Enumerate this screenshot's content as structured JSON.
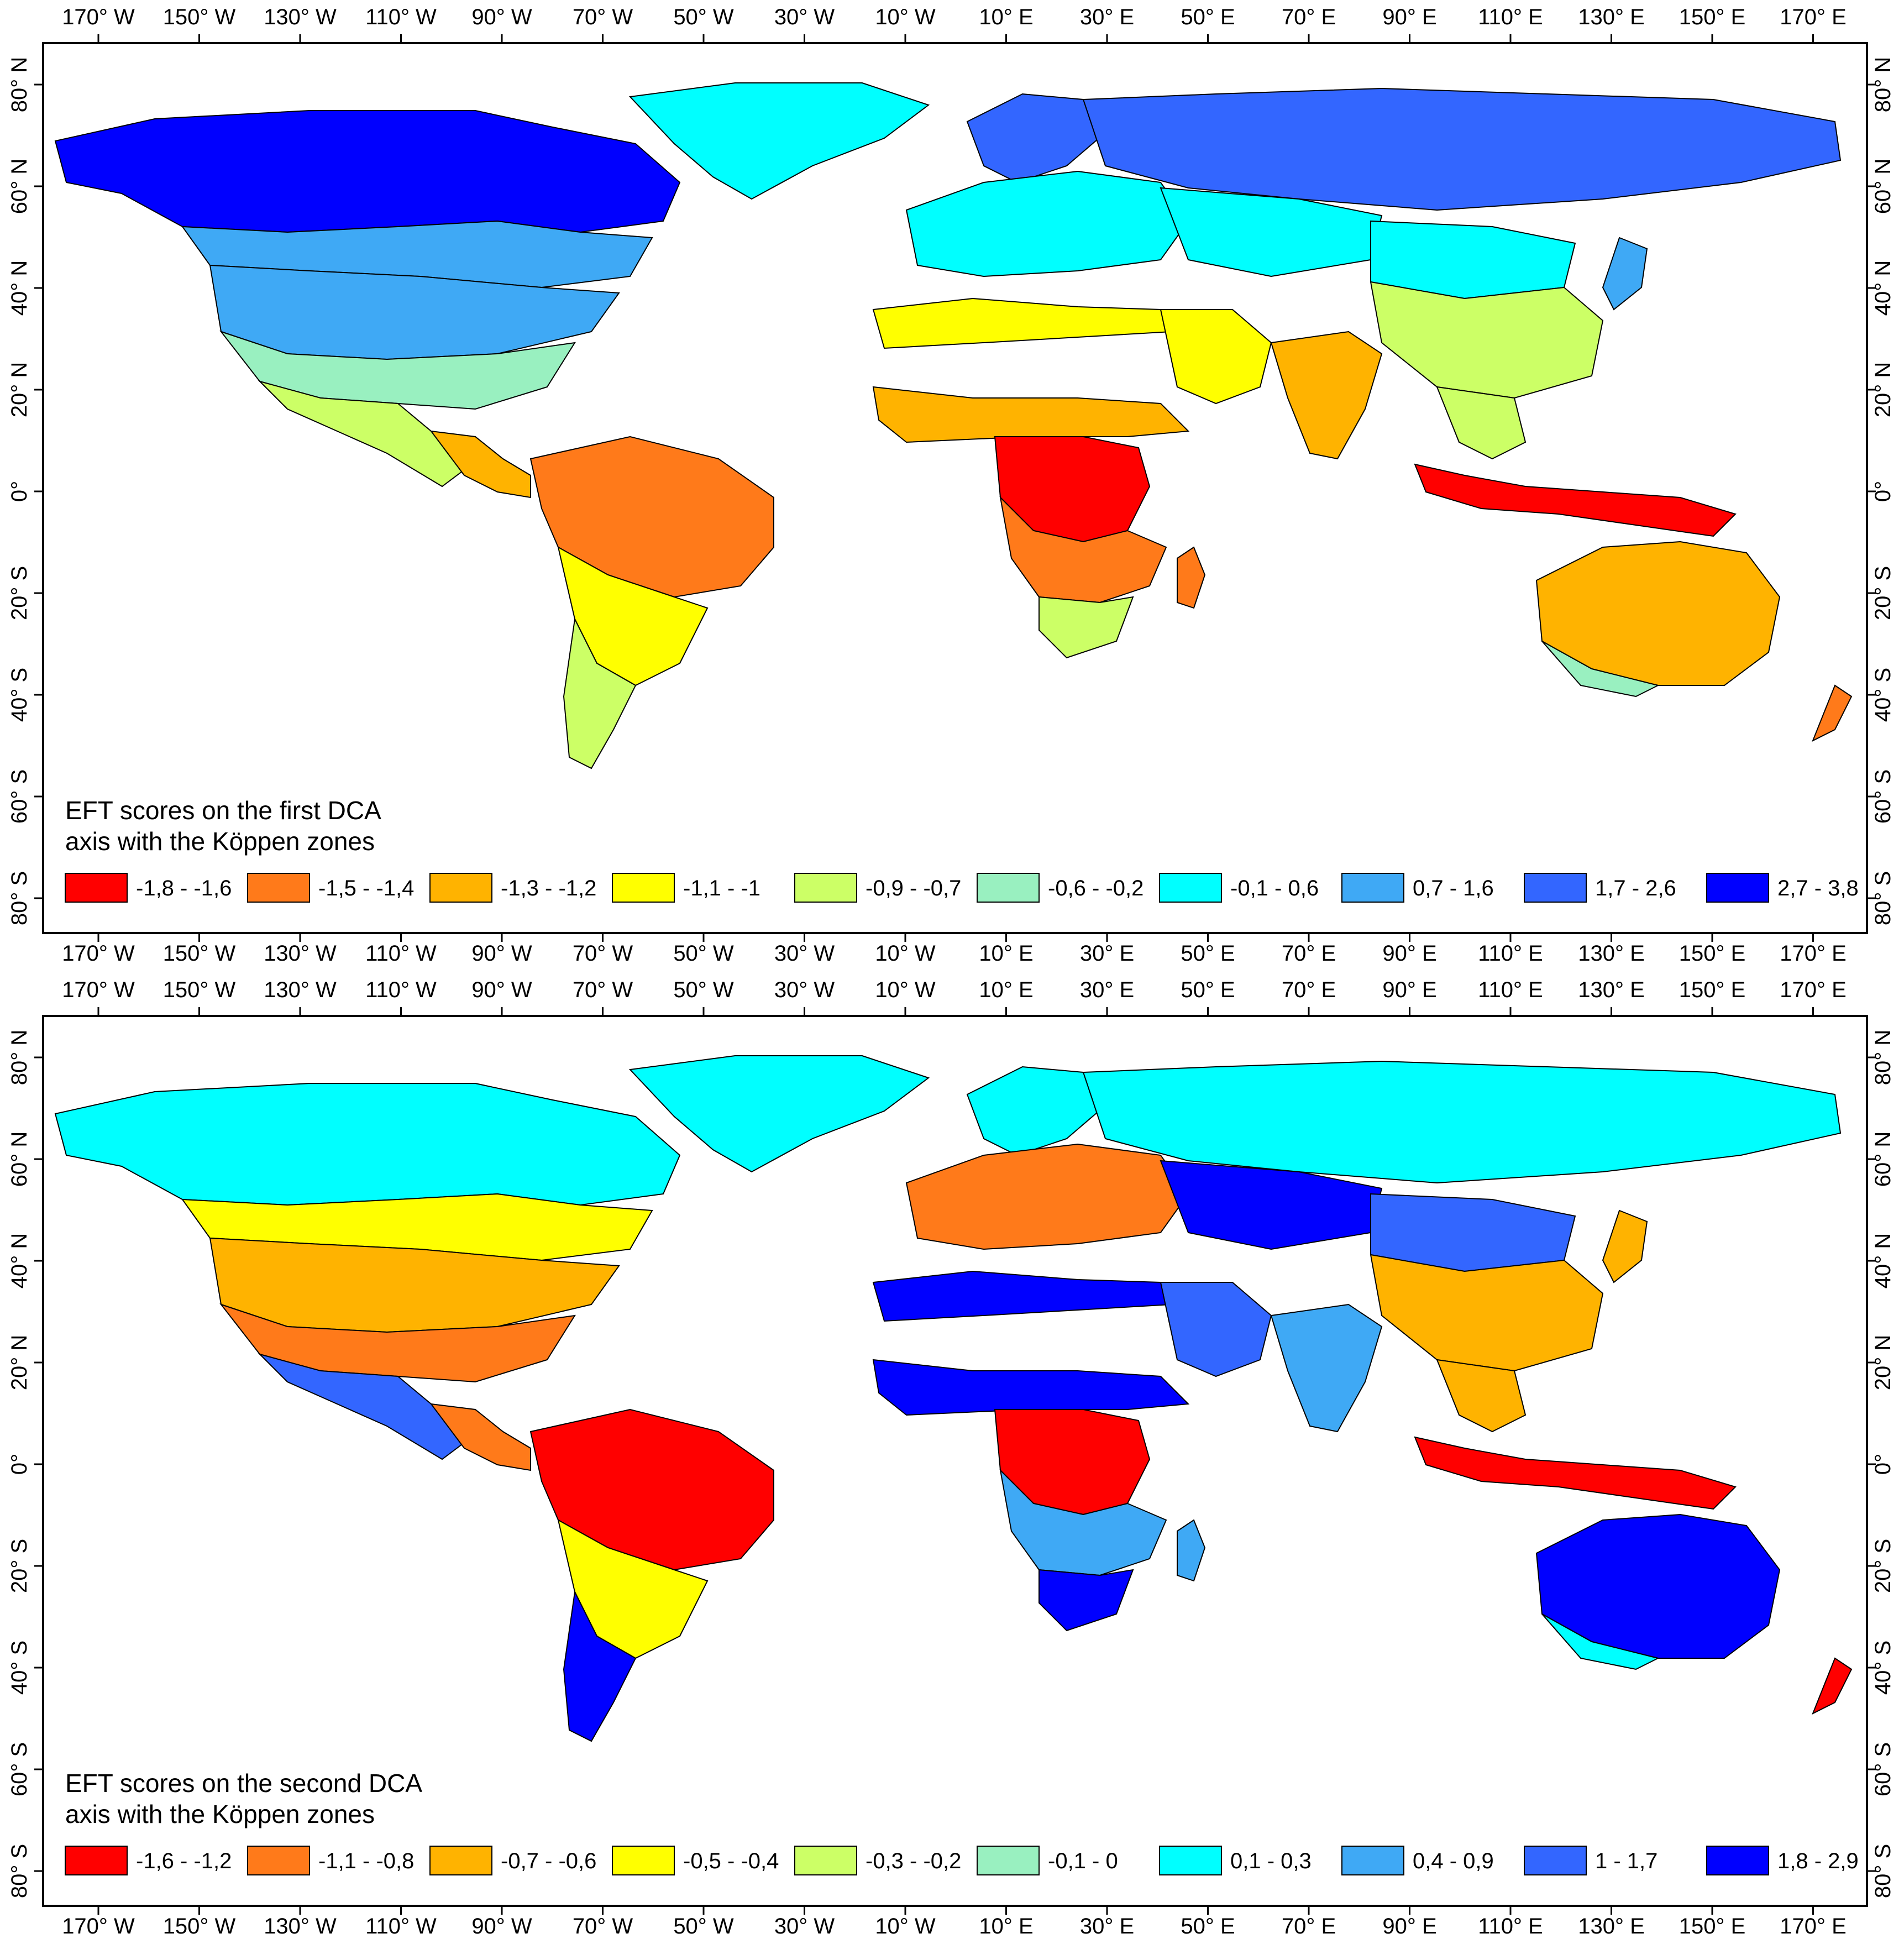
{
  "maps": [
    {
      "id": "dca-axis-1",
      "title_lines": [
        "EFT scores on the first DCA",
        "axis with the Köppen zones"
      ],
      "legend": [
        {
          "label": "-1,8 - -1,6",
          "color": "#ff0000"
        },
        {
          "label": "-1,5 - -1,4",
          "color": "#ff7a1a"
        },
        {
          "label": "-1,3 - -1,2",
          "color": "#ffb300"
        },
        {
          "label": "-1,1 - -1",
          "color": "#ffff00"
        },
        {
          "label": "-0,9 - -0,7",
          "color": "#ccff66"
        },
        {
          "label": "-0,6 - -0,2",
          "color": "#99f0c0"
        },
        {
          "label": "-0,1 - 0,6",
          "color": "#00ffff"
        },
        {
          "label": "0,7 - 1,6",
          "color": "#3fa9f5"
        },
        {
          "label": "1,7 - 2,6",
          "color": "#3366ff"
        },
        {
          "label": "2,7 - 3,8",
          "color": "#0000ff"
        }
      ]
    },
    {
      "id": "dca-axis-2",
      "title_lines": [
        "EFT scores on the second DCA",
        "axis with the Köppen zones"
      ],
      "legend": [
        {
          "label": "-1,6 - -1,2",
          "color": "#ff0000"
        },
        {
          "label": "-1,1 - -0,8",
          "color": "#ff7a1a"
        },
        {
          "label": "-0,7 - -0,6",
          "color": "#ffb300"
        },
        {
          "label": "-0,5 - -0,4",
          "color": "#ffff00"
        },
        {
          "label": "-0,3 - -0,2",
          "color": "#ccff66"
        },
        {
          "label": "-0,1 - 0",
          "color": "#99f0c0"
        },
        {
          "label": "0,1 - 0,3",
          "color": "#00ffff"
        },
        {
          "label": "0,4 - 0,9",
          "color": "#3fa9f5"
        },
        {
          "label": "1 - 1,7",
          "color": "#3366ff"
        },
        {
          "label": "1,8 - 2,9",
          "color": "#0000ff"
        }
      ]
    }
  ],
  "longitude_labels": [
    "170° W",
    "150° W",
    "130° W",
    "110° W",
    "90° W",
    "70° W",
    "50° W",
    "30° W",
    "10° W",
    "10° E",
    "30° E",
    "50° E",
    "70° E",
    "90° E",
    "110° E",
    "130° E",
    "150° E",
    "170° E"
  ],
  "latitude_labels": [
    "80° N",
    "60° N",
    "40° N",
    "20° N",
    "0°",
    "20° S",
    "40° S",
    "60° S",
    "80° S"
  ],
  "region_colors": {
    "panel1": {
      "canada_north": "#0000ff",
      "canada_south": "#3fa9f5",
      "usa_north": "#3fa9f5",
      "usa_south": "#99f0c0",
      "mexico": "#ccff66",
      "central_am": "#ffb300",
      "amazon": "#ff7a1a",
      "south_am_south": "#ffff00",
      "patagonia": "#ccff66",
      "greenland_coast": "#00ffff",
      "scandinavia": "#3366ff",
      "europe": "#00ffff",
      "russia": "#3366ff",
      "central_asia": "#00ffff",
      "mongolia": "#00ffff",
      "china": "#ccff66",
      "india": "#ffb300",
      "se_asia": "#ccff66",
      "indonesia": "#ff0000",
      "sahel": "#ffb300",
      "congo": "#ff0000",
      "africa_south": "#ff7a1a",
      "africa_tip": "#ccff66",
      "madagascar": "#ff7a1a",
      "australia": "#ffb300",
      "australia_coast": "#99f0c0",
      "new_zealand": "#ff7a1a",
      "japan": "#3fa9f5",
      "north_africa_coast": "#ffff00",
      "middle_east": "#ffff00"
    },
    "panel2": {
      "canada_north": "#00ffff",
      "canada_south": "#ffff00",
      "usa_north": "#ffb300",
      "usa_south": "#ff7a1a",
      "mexico": "#3366ff",
      "central_am": "#ff7a1a",
      "amazon": "#ff0000",
      "south_am_south": "#ffff00",
      "patagonia": "#0000ff",
      "greenland_coast": "#00ffff",
      "scandinavia": "#00ffff",
      "europe": "#ff7a1a",
      "russia": "#00ffff",
      "central_asia": "#0000ff",
      "mongolia": "#3366ff",
      "china": "#ffb300",
      "india": "#3fa9f5",
      "se_asia": "#ffb300",
      "indonesia": "#ff0000",
      "sahel": "#0000ff",
      "congo": "#ff0000",
      "africa_south": "#3fa9f5",
      "africa_tip": "#0000ff",
      "madagascar": "#3fa9f5",
      "australia": "#0000ff",
      "australia_coast": "#00ffff",
      "new_zealand": "#ff0000",
      "japan": "#ffb300",
      "north_africa_coast": "#0000ff",
      "middle_east": "#3366ff"
    }
  }
}
